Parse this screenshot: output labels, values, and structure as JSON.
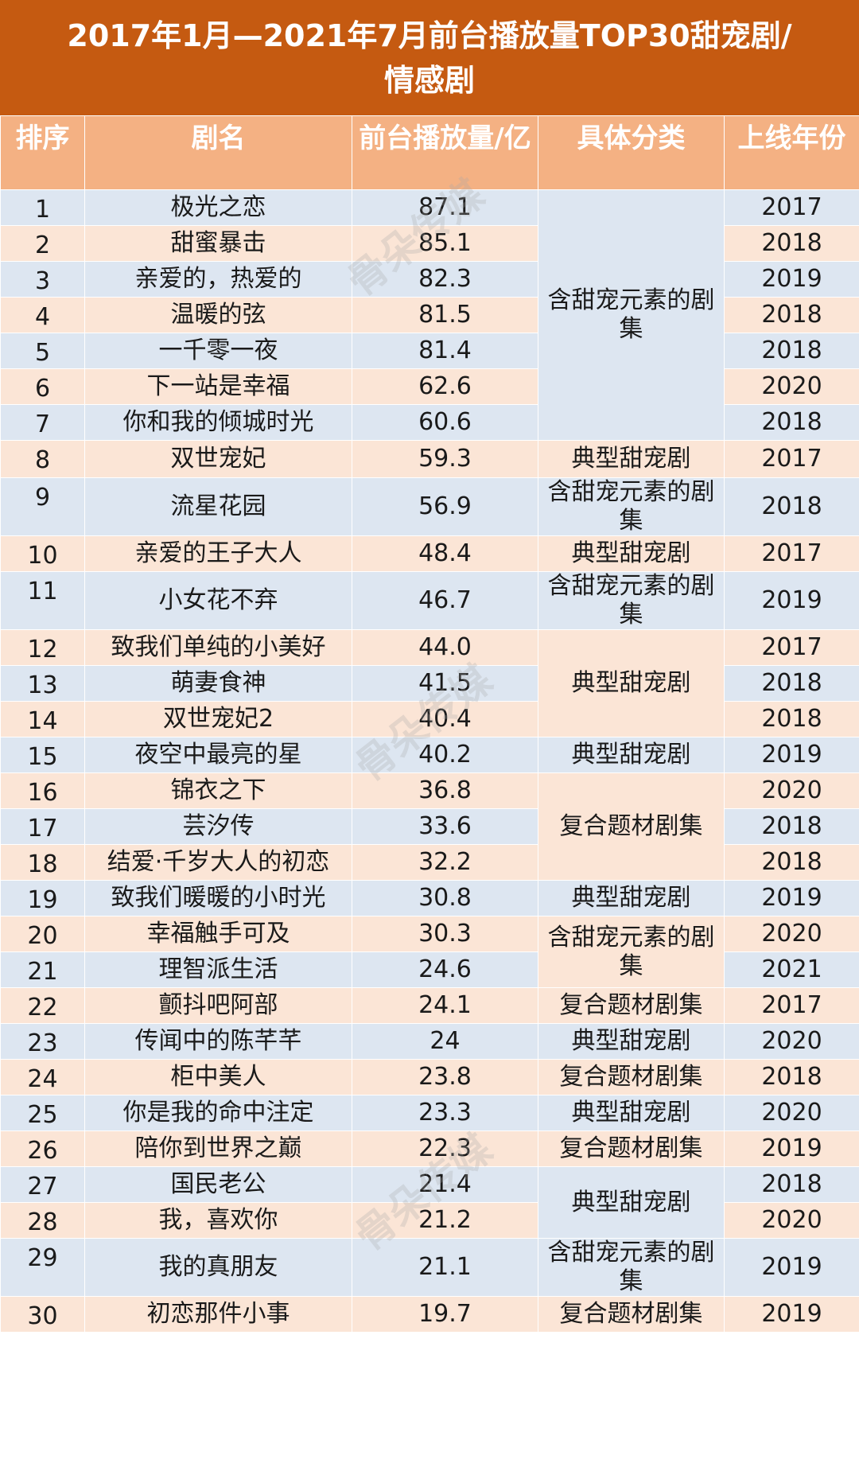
{
  "title_line1": "2017年1月—2021年7月前台播放量TOP30甜宠剧/",
  "title_line2": "情感剧",
  "columns": [
    "排序",
    "剧名",
    "前台播放量/亿",
    "具体分类",
    "上线年份"
  ],
  "watermark": "骨朵传媒",
  "rows": [
    {
      "rank": "1",
      "name": "极光之恋",
      "views": "87.1",
      "year": "2017"
    },
    {
      "rank": "2",
      "name": "甜蜜暴击",
      "views": "85.1",
      "year": "2018"
    },
    {
      "rank": "3",
      "name": "亲爱的，热爱的",
      "views": "82.3",
      "year": "2019"
    },
    {
      "rank": "4",
      "name": "温暖的弦",
      "views": "81.5",
      "year": "2018"
    },
    {
      "rank": "5",
      "name": "一千零一夜",
      "views": "81.4",
      "year": "2018"
    },
    {
      "rank": "6",
      "name": "下一站是幸福",
      "views": "62.6",
      "year": "2020"
    },
    {
      "rank": "7",
      "name": "你和我的倾城时光",
      "views": "60.6",
      "year": "2018"
    },
    {
      "rank": "8",
      "name": "双世宠妃",
      "views": "59.3",
      "year": "2017"
    },
    {
      "rank": "9",
      "name": "流星花园",
      "views": "56.9",
      "year": "2018"
    },
    {
      "rank": "10",
      "name": "亲爱的王子大人",
      "views": "48.4",
      "year": "2017"
    },
    {
      "rank": "11",
      "name": "小女花不弃",
      "views": "46.7",
      "year": "2019"
    },
    {
      "rank": "12",
      "name": "致我们单纯的小美好",
      "views": "44.0",
      "year": "2017"
    },
    {
      "rank": "13",
      "name": "萌妻食神",
      "views": "41.5",
      "year": "2018"
    },
    {
      "rank": "14",
      "name": "双世宠妃2",
      "views": "40.4",
      "year": "2018"
    },
    {
      "rank": "15",
      "name": "夜空中最亮的星",
      "views": "40.2",
      "year": "2019"
    },
    {
      "rank": "16",
      "name": "锦衣之下",
      "views": "36.8",
      "year": "2020"
    },
    {
      "rank": "17",
      "name": "芸汐传",
      "views": "33.6",
      "year": "2018"
    },
    {
      "rank": "18",
      "name": "结爱·千岁大人的初恋",
      "views": "32.2",
      "year": "2018"
    },
    {
      "rank": "19",
      "name": "致我们暖暖的小时光",
      "views": "30.8",
      "year": "2019"
    },
    {
      "rank": "20",
      "name": "幸福触手可及",
      "views": "30.3",
      "year": "2020"
    },
    {
      "rank": "21",
      "name": "理智派生活",
      "views": "24.6",
      "year": "2021"
    },
    {
      "rank": "22",
      "name": "颤抖吧阿部",
      "views": "24.1",
      "year": "2017"
    },
    {
      "rank": "23",
      "name": "传闻中的陈芊芊",
      "views": "24",
      "year": "2020"
    },
    {
      "rank": "24",
      "name": "柜中美人",
      "views": "23.8",
      "year": "2018"
    },
    {
      "rank": "25",
      "name": "你是我的命中注定",
      "views": "23.3",
      "year": "2020"
    },
    {
      "rank": "26",
      "name": "陪你到世界之巅",
      "views": "22.3",
      "year": "2019"
    },
    {
      "rank": "27",
      "name": "国民老公",
      "views": "21.4",
      "year": "2018"
    },
    {
      "rank": "28",
      "name": "我，喜欢你",
      "views": "21.2",
      "year": "2020"
    },
    {
      "rank": "29",
      "name": "我的真朋友",
      "views": "21.1",
      "year": "2019"
    },
    {
      "rank": "30",
      "name": "初恋那件小事",
      "views": "19.7",
      "year": "2019"
    }
  ],
  "categories": [
    {
      "start": 0,
      "span": 7,
      "label": "含甜宠元素的剧集"
    },
    {
      "start": 7,
      "span": 1,
      "label": "典型甜宠剧"
    },
    {
      "start": 8,
      "span": 1,
      "label": "含甜宠元素的剧集"
    },
    {
      "start": 9,
      "span": 1,
      "label": "典型甜宠剧"
    },
    {
      "start": 10,
      "span": 1,
      "label": "含甜宠元素的剧集"
    },
    {
      "start": 11,
      "span": 3,
      "label": "典型甜宠剧"
    },
    {
      "start": 14,
      "span": 1,
      "label": "典型甜宠剧"
    },
    {
      "start": 15,
      "span": 3,
      "label": "复合题材剧集"
    },
    {
      "start": 18,
      "span": 1,
      "label": "典型甜宠剧"
    },
    {
      "start": 19,
      "span": 2,
      "label": "含甜宠元素的剧集"
    },
    {
      "start": 21,
      "span": 1,
      "label": "复合题材剧集"
    },
    {
      "start": 22,
      "span": 1,
      "label": "典型甜宠剧"
    },
    {
      "start": 23,
      "span": 1,
      "label": "复合题材剧集"
    },
    {
      "start": 24,
      "span": 1,
      "label": "典型甜宠剧"
    },
    {
      "start": 25,
      "span": 1,
      "label": "复合题材剧集"
    },
    {
      "start": 26,
      "span": 2,
      "label": "典型甜宠剧"
    },
    {
      "start": 28,
      "span": 1,
      "label": "含甜宠元素的剧集"
    },
    {
      "start": 29,
      "span": 1,
      "label": "复合题材剧集"
    }
  ]
}
